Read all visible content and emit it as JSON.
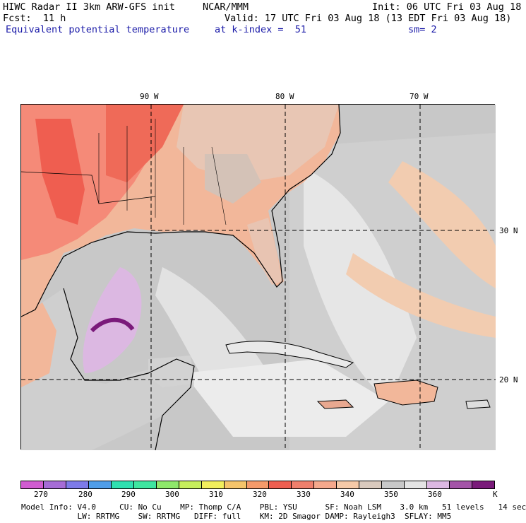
{
  "header": {
    "title": "HIWC Radar II 3km ARW-GFS init",
    "org": "NCAR/MMM",
    "init": "Init: 06 UTC Fri 03 Aug 18",
    "fcst": "Fcst:  11 h",
    "valid": "Valid: 17 UTC Fri 03 Aug 18 (13 EDT Fri 03 Aug 18)",
    "field": "Equivalent potential temperature",
    "level": "at k-index =  51",
    "smooth": "sm= 2"
  },
  "axes": {
    "lon_labels": [
      "90 W",
      "80 W",
      "70 W"
    ],
    "lat_labels": [
      "30 N",
      "20 N"
    ]
  },
  "colorbar": {
    "labels": [
      "270",
      "280",
      "290",
      "300",
      "310",
      "320",
      "330",
      "340",
      "350",
      "360"
    ],
    "unit": "K",
    "colors": [
      "#d15cd1",
      "#a66cd6",
      "#7d7ae8",
      "#4f9de8",
      "#2fe0b0",
      "#3ee6a0",
      "#8ee86a",
      "#c6ee5c",
      "#f2ef5c",
      "#f5c46a",
      "#f59a6a",
      "#ef5e50",
      "#ef7f6c",
      "#f5a88c",
      "#f5c9a8",
      "#d9c9bd",
      "#c8c8c8",
      "#e4e4e4",
      "#dcb8e2",
      "#a454a8",
      "#7a1a7a"
    ]
  },
  "footer": {
    "line1": "Model Info: V4.0     CU: No Cu    MP: Thomp C/A    PBL: YSU      SF: Noah LSM    3.0 km   51 levels   14 sec",
    "line2": "            LW: RRTMG    SW: RRTMG   DIFF: full    KM: 2D Smagor DAMP: Rayleigh3  SFLAY: MM5"
  }
}
